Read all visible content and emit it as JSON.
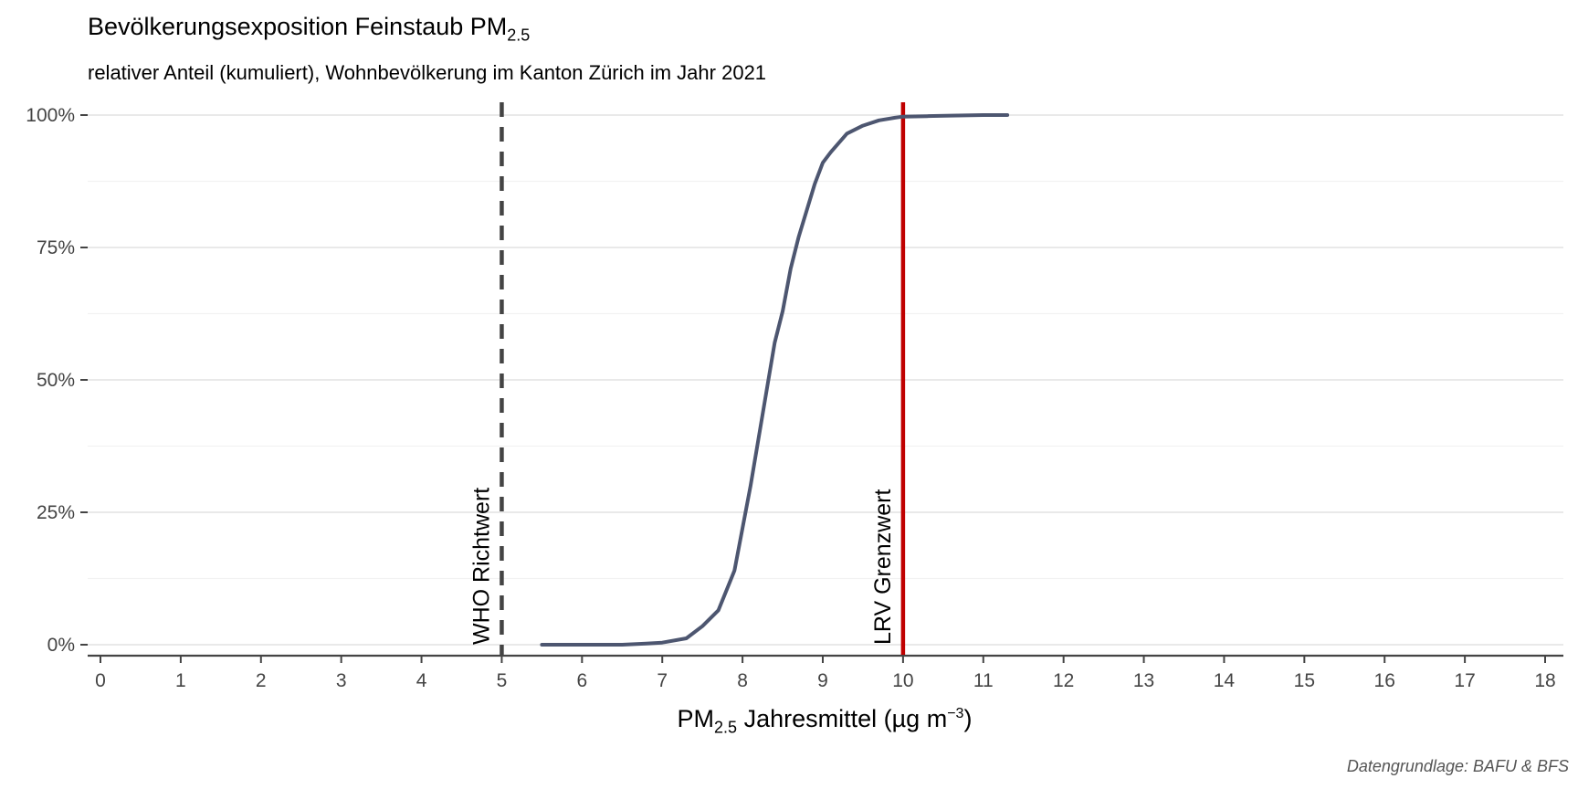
{
  "title": {
    "main": "Bevölkerungsexposition Feinstaub PM",
    "sub": "2.5"
  },
  "subtitle": "relativer Anteil (kumuliert), Wohnbevölkerung im Kanton Zürich im Jahr 2021",
  "xaxis_title": {
    "pre": "PM",
    "sub": "2.5",
    "mid": " Jahresmittel (µg m",
    "sup": "−3",
    "post": ")"
  },
  "caption": "Datengrundlage: BAFU & BFS",
  "colors": {
    "curve": "#4d5670",
    "lrv": "#c00000",
    "who": "#444444",
    "grid": "#e9e9e9",
    "axis": "#444444"
  },
  "chart_data": {
    "type": "line",
    "xlim": [
      0,
      18
    ],
    "ylim": [
      0,
      1
    ],
    "x_ticks": [
      0,
      1,
      2,
      3,
      4,
      5,
      6,
      7,
      8,
      9,
      10,
      11,
      12,
      13,
      14,
      15,
      16,
      17,
      18
    ],
    "y_ticks": [
      0,
      0.25,
      0.5,
      0.75,
      1
    ],
    "y_tick_labels": [
      "0%",
      "25%",
      "50%",
      "75%",
      "100%"
    ],
    "grid": "horizontal",
    "series": [
      {
        "x": [
          5.5,
          6.0,
          6.5,
          6.8,
          7.0,
          7.3,
          7.5,
          7.7,
          7.9,
          8.0,
          8.1,
          8.2,
          8.3,
          8.4,
          8.5,
          8.6,
          8.7,
          8.8,
          8.9,
          9.0,
          9.1,
          9.3,
          9.5,
          9.7,
          9.9,
          10.0,
          10.3,
          10.6,
          11.0,
          11.3
        ],
        "y": [
          0.0,
          0.0,
          0.0,
          0.002,
          0.004,
          0.012,
          0.035,
          0.065,
          0.14,
          0.22,
          0.3,
          0.39,
          0.48,
          0.57,
          0.63,
          0.71,
          0.77,
          0.82,
          0.87,
          0.91,
          0.93,
          0.965,
          0.98,
          0.99,
          0.995,
          0.997,
          0.998,
          0.999,
          1.0,
          1.0
        ]
      }
    ],
    "reference_lines": [
      {
        "x": 5,
        "label": "WHO Richtwert",
        "style": "dashed"
      },
      {
        "x": 10,
        "label": "LRV Grenzwert",
        "style": "solid"
      }
    ]
  }
}
